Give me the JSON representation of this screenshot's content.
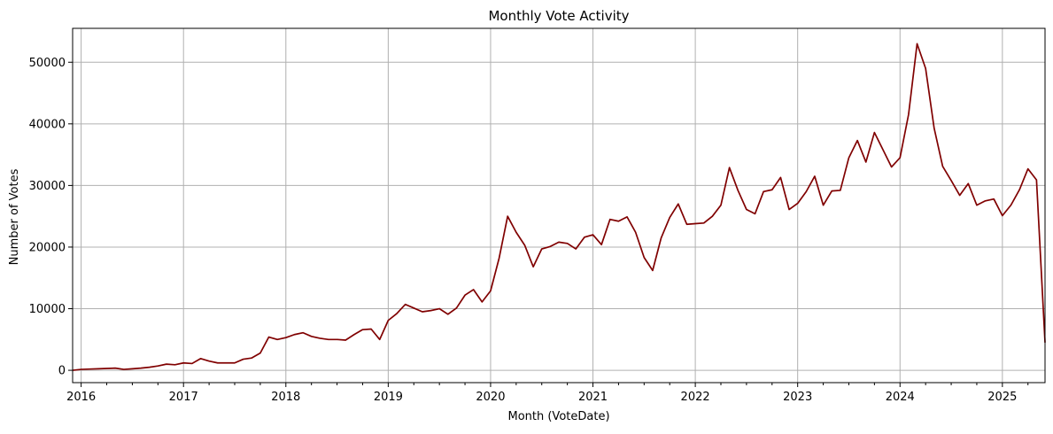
{
  "chart_data": {
    "type": "line",
    "title": "Monthly Vote Activity",
    "xlabel": "Month (VoteDate)",
    "ylabel": "Number of Votes",
    "line_color": "#800000",
    "grid": true,
    "x_start": "2015-12",
    "x_end": "2025-06",
    "xlim": [
      "2015-12",
      "2025-06"
    ],
    "ylim": [
      -2000,
      55500
    ],
    "x_ticks": [
      "2016",
      "2017",
      "2018",
      "2019",
      "2020",
      "2021",
      "2022",
      "2023",
      "2024",
      "2025"
    ],
    "y_ticks": [
      0,
      10000,
      20000,
      30000,
      40000,
      50000
    ],
    "x": [
      "2015-12",
      "2016-01",
      "2016-02",
      "2016-03",
      "2016-04",
      "2016-05",
      "2016-06",
      "2016-07",
      "2016-08",
      "2016-09",
      "2016-10",
      "2016-11",
      "2016-12",
      "2017-01",
      "2017-02",
      "2017-03",
      "2017-04",
      "2017-05",
      "2017-06",
      "2017-07",
      "2017-08",
      "2017-09",
      "2017-10",
      "2017-11",
      "2017-12",
      "2018-01",
      "2018-02",
      "2018-03",
      "2018-04",
      "2018-05",
      "2018-06",
      "2018-07",
      "2018-08",
      "2018-09",
      "2018-10",
      "2018-11",
      "2018-12",
      "2019-01",
      "2019-02",
      "2019-03",
      "2019-04",
      "2019-05",
      "2019-06",
      "2019-07",
      "2019-08",
      "2019-09",
      "2019-10",
      "2019-11",
      "2019-12",
      "2020-01",
      "2020-02",
      "2020-03",
      "2020-04",
      "2020-05",
      "2020-06",
      "2020-07",
      "2020-08",
      "2020-09",
      "2020-10",
      "2020-11",
      "2020-12",
      "2021-01",
      "2021-02",
      "2021-03",
      "2021-04",
      "2021-05",
      "2021-06",
      "2021-07",
      "2021-08",
      "2021-09",
      "2021-10",
      "2021-11",
      "2021-12",
      "2022-01",
      "2022-02",
      "2022-03",
      "2022-04",
      "2022-05",
      "2022-06",
      "2022-07",
      "2022-08",
      "2022-09",
      "2022-10",
      "2022-11",
      "2022-12",
      "2023-01",
      "2023-02",
      "2023-03",
      "2023-04",
      "2023-05",
      "2023-06",
      "2023-07",
      "2023-08",
      "2023-09",
      "2023-10",
      "2023-11",
      "2023-12",
      "2024-01",
      "2024-02",
      "2024-03",
      "2024-04",
      "2024-05",
      "2024-06",
      "2024-07",
      "2024-08",
      "2024-09",
      "2024-10",
      "2024-11",
      "2024-12",
      "2025-01",
      "2025-02",
      "2025-03",
      "2025-04",
      "2025-05",
      "2025-06"
    ],
    "values": [
      0,
      150,
      200,
      250,
      300,
      350,
      150,
      250,
      350,
      500,
      700,
      1000,
      900,
      1200,
      1100,
      1900,
      1500,
      1200,
      1200,
      1200,
      1800,
      2000,
      2800,
      5400,
      5000,
      5300,
      5800,
      6100,
      5500,
      5200,
      5000,
      5000,
      4900,
      5800,
      6600,
      6700,
      5000,
      8100,
      9200,
      10700,
      10100,
      9500,
      9700,
      10000,
      9100,
      10100,
      12200,
      13100,
      11100,
      12900,
      18200,
      25000,
      22400,
      20300,
      16800,
      19700,
      20100,
      20800,
      20600,
      19700,
      21600,
      22000,
      20400,
      24500,
      24200,
      24900,
      22400,
      18300,
      16200,
      21500,
      24800,
      27000,
      23700,
      23800,
      23900,
      25000,
      26800,
      32900,
      29200,
      26100,
      25400,
      29000,
      29300,
      31300,
      26100,
      27100,
      29000,
      31500,
      26800,
      29100,
      29200,
      34500,
      37300,
      33800,
      38600,
      35800,
      33000,
      34500,
      41500,
      53000,
      49000,
      39300,
      33100,
      30800,
      28400,
      30300,
      26800,
      27500,
      27800,
      25100,
      26800,
      29300,
      32700,
      30900,
      4500
    ]
  }
}
